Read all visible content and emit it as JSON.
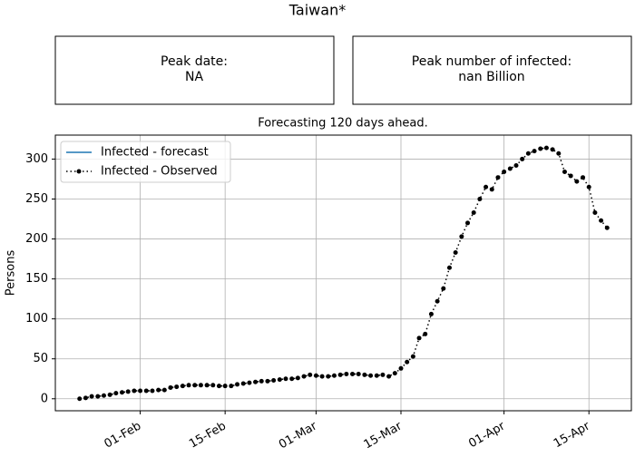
{
  "title": "Taiwan*",
  "info_boxes": [
    {
      "label": "Peak date:",
      "value": "NA"
    },
    {
      "label": "Peak number of infected:",
      "value": "nan Billion"
    }
  ],
  "chart_data": {
    "type": "line",
    "title": "Forecasting 120 days ahead.",
    "y_label": "Persons",
    "x": [
      "22-Jan",
      "23-Jan",
      "24-Jan",
      "25-Jan",
      "26-Jan",
      "27-Jan",
      "28-Jan",
      "29-Jan",
      "30-Jan",
      "31-Jan",
      "01-Feb",
      "02-Feb",
      "03-Feb",
      "04-Feb",
      "05-Feb",
      "06-Feb",
      "07-Feb",
      "08-Feb",
      "09-Feb",
      "10-Feb",
      "11-Feb",
      "12-Feb",
      "13-Feb",
      "14-Feb",
      "15-Feb",
      "16-Feb",
      "17-Feb",
      "18-Feb",
      "19-Feb",
      "20-Feb",
      "21-Feb",
      "22-Feb",
      "23-Feb",
      "24-Feb",
      "25-Feb",
      "26-Feb",
      "27-Feb",
      "28-Feb",
      "29-Feb",
      "01-Mar",
      "02-Mar",
      "03-Mar",
      "04-Mar",
      "05-Mar",
      "06-Mar",
      "07-Mar",
      "08-Mar",
      "09-Mar",
      "10-Mar",
      "11-Mar",
      "12-Mar",
      "13-Mar",
      "14-Mar",
      "15-Mar",
      "16-Mar",
      "17-Mar",
      "18-Mar",
      "19-Mar",
      "20-Mar",
      "21-Mar",
      "22-Mar",
      "23-Mar",
      "24-Mar",
      "25-Mar",
      "26-Mar",
      "27-Mar",
      "28-Mar",
      "29-Mar",
      "30-Mar",
      "31-Mar",
      "01-Apr",
      "02-Apr",
      "03-Apr",
      "04-Apr",
      "05-Apr",
      "06-Apr",
      "07-Apr",
      "08-Apr",
      "09-Apr",
      "10-Apr",
      "11-Apr",
      "12-Apr",
      "13-Apr",
      "14-Apr",
      "15-Apr",
      "16-Apr",
      "17-Apr",
      "18-Apr"
    ],
    "series": [
      {
        "name": "Infected - forecast",
        "color": "#1f77b4",
        "style": "solid",
        "values": [
          null,
          null,
          null,
          null,
          null,
          null,
          null,
          null,
          null,
          null,
          null,
          null,
          null,
          null,
          null,
          null,
          null,
          null,
          null,
          null,
          null,
          null,
          null,
          null,
          null,
          null,
          null,
          null,
          null,
          null,
          null,
          null,
          null,
          null,
          null,
          null,
          null,
          null,
          null,
          null,
          null,
          null,
          null,
          null,
          null,
          null,
          null,
          null,
          null,
          null,
          null,
          null,
          null,
          null,
          null,
          null,
          null,
          null,
          null,
          null,
          null,
          null,
          null,
          null,
          null,
          null,
          null,
          null,
          null,
          null,
          null,
          null,
          null,
          null,
          null,
          null,
          null,
          null,
          null,
          null,
          null,
          null,
          null,
          null,
          null,
          null,
          null,
          null
        ]
      },
      {
        "name": "Infected - Observed",
        "color": "#000000",
        "style": "dotted",
        "values": [
          0,
          1,
          3,
          3,
          4,
          5,
          7,
          8,
          9,
          10,
          10,
          10,
          10,
          11,
          11,
          14,
          15,
          16,
          17,
          17,
          17,
          17,
          17,
          16,
          16,
          16,
          18,
          19,
          20,
          21,
          22,
          22,
          23,
          24,
          25,
          25,
          26,
          28,
          30,
          29,
          28,
          28,
          29,
          30,
          31,
          31,
          31,
          30,
          29,
          29,
          30,
          28,
          32,
          38,
          46,
          53,
          76,
          81,
          106,
          122,
          138,
          164,
          183,
          203,
          220,
          233,
          250,
          265,
          262,
          277,
          284,
          288,
          292,
          300,
          307,
          310,
          313,
          314,
          312,
          307,
          284,
          279,
          272,
          277,
          265,
          233,
          223,
          214
        ]
      }
    ],
    "xlim": [
      "18-Jan",
      "22-Apr"
    ],
    "xticks": [
      "01-Feb",
      "15-Feb",
      "01-Mar",
      "15-Mar",
      "01-Apr",
      "15-Apr"
    ],
    "ylim": [
      -15,
      330
    ],
    "yticks": [
      0,
      50,
      100,
      150,
      200,
      250,
      300
    ],
    "grid": true,
    "legend": "upper-left"
  }
}
